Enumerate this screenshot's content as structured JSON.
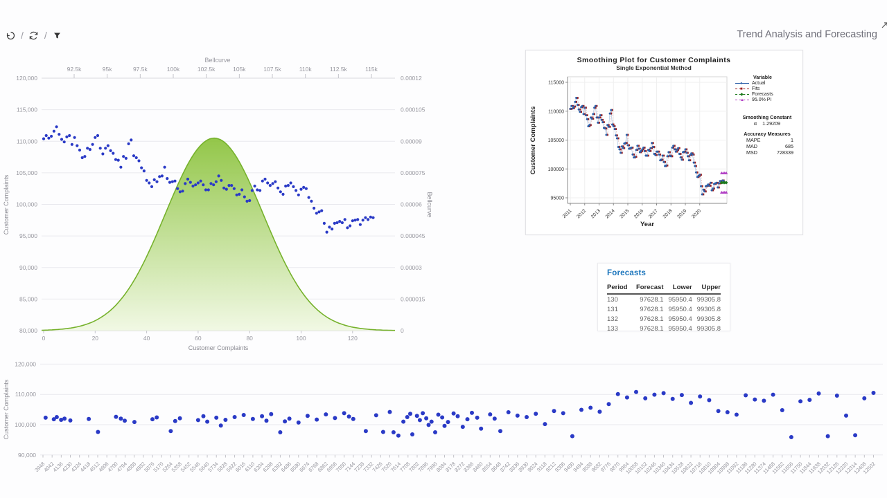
{
  "header": {
    "title": "Trend Analysis and Forecasting",
    "toolbar": {
      "undo_icon": "undo-history",
      "refresh_icon": "refresh",
      "filter_icon": "filter",
      "separator": "/"
    }
  },
  "colors": {
    "scatter_blue": "#2a3ac6",
    "bell_green_stroke": "#76b22c",
    "bell_green_top": "#8ac23a",
    "bell_green_bottom": "#f0f8e2",
    "grid": "#e9e9ee",
    "axis_text": "#97979f",
    "mt_actual": "#2b5fa8",
    "mt_fits": "#9c2020",
    "mt_forecast": "#1d7a1d",
    "mt_pi": "#b13fc4",
    "table_title_blue": "#1b75bc"
  },
  "chart_data": [
    {
      "id": "complaints_bellcurve",
      "type": "scatter+area",
      "top_axis_title": "Bellcurve",
      "xlabel": "Customer Complaints",
      "ylabel_left": "Customer Complaints",
      "ylabel_right": "Bellcurve",
      "x_ticks_bottom": [
        "0",
        "20",
        "40",
        "60",
        "80",
        "100",
        "120"
      ],
      "x_ticks_top": [
        "92.5k",
        "95k",
        "97.5k",
        "100k",
        "102.5k",
        "105k",
        "107.5k",
        "110k",
        "112.5k",
        "115k"
      ],
      "y_ticks_left": [
        "120,000",
        "115,000",
        "110,000",
        "105,000",
        "100,000",
        "95,000",
        "90,000",
        "85,000",
        "80,000"
      ],
      "y_ticks_right": [
        "0.00012",
        "0.000105",
        "0.00009",
        "0.000075",
        "0.00006",
        "0.000045",
        "0.00003",
        "0.000015",
        "0"
      ],
      "ylim_left": [
        80000,
        120000
      ],
      "ylim_right": [
        0,
        0.00012
      ],
      "xlim": [
        0,
        136
      ],
      "bellcurve": {
        "mean": 103100,
        "sd": 3700,
        "peak": 9.15e-05
      },
      "series_scatter": [
        110400,
        110900,
        110500,
        110800,
        111600,
        112300,
        111100,
        110300,
        109900,
        110700,
        110900,
        109500,
        110600,
        109300,
        108600,
        107400,
        107600,
        108900,
        108700,
        109500,
        110600,
        110900,
        108900,
        108000,
        108900,
        109300,
        108500,
        108100,
        107100,
        107000,
        105900,
        107600,
        107300,
        109600,
        110200,
        107700,
        107400,
        106900,
        105800,
        105300,
        103800,
        103400,
        102800,
        103900,
        103600,
        104400,
        104500,
        105900,
        104100,
        103500,
        103600,
        103700,
        102500,
        102000,
        102100,
        103300,
        104000,
        103500,
        102900,
        103100,
        103400,
        103700,
        103100,
        102300,
        102300,
        103300,
        103100,
        103600,
        104500,
        103800,
        102600,
        102400,
        103000,
        103000,
        102500,
        101500,
        101600,
        102300,
        101200,
        100500,
        100600,
        102200,
        102900,
        102300,
        102200,
        103700,
        104000,
        103400,
        103000,
        103300,
        103600,
        102600,
        102000,
        101600,
        102900,
        103000,
        103400,
        102800,
        102200,
        101500,
        102400,
        102700,
        102500,
        101100,
        100500,
        99400,
        98600,
        98800,
        99000,
        97000,
        95600,
        96400,
        96100,
        97000,
        97100,
        97300,
        97100,
        97600,
        96300,
        96600,
        97400,
        97500,
        97600,
        96800,
        97500,
        97900,
        97600,
        98000,
        97900
      ]
    },
    {
      "id": "smoothing_plot",
      "type": "line",
      "title": "Smoothing Plot for Customer Complaints",
      "subtitle": "Single Exponential Method",
      "xlabel": "Year",
      "ylabel": "Customer Complaints",
      "x_tick_labels": [
        "2011",
        "2012",
        "2013",
        "2014",
        "2015",
        "2016",
        "2017",
        "2018",
        "2019",
        "2020"
      ],
      "y_ticks": [
        "115000",
        "110000",
        "105000",
        "100000",
        "95000"
      ],
      "legend_title": "Variable",
      "legend": [
        {
          "label": "Actual",
          "color": "#2b5fa8",
          "marker": "circle",
          "dash": false
        },
        {
          "label": "Fits",
          "color": "#9c2020",
          "marker": "square",
          "dash": true
        },
        {
          "label": "Forecasts",
          "color": "#1d7a1d",
          "marker": "diamond",
          "dash": true
        },
        {
          "label": "95.0% PI",
          "color": "#b13fc4",
          "marker": "triangle",
          "dash": true
        }
      ],
      "smoothing_constant_label": "Smoothing Constant",
      "alpha_label": "α",
      "alpha_value": "1.29209",
      "accuracy_title": "Accuracy Measures",
      "accuracy": [
        [
          "MAPE",
          "1"
        ],
        [
          "MAD",
          "685"
        ],
        [
          "MSD",
          "728339"
        ]
      ],
      "forecast_value": 97628.1,
      "pi_upper": 99305.8,
      "pi_lower": 95950.4
    },
    {
      "id": "forecasts_table",
      "type": "table",
      "title": "Forecasts",
      "columns": [
        "Period",
        "Forecast",
        "Lower",
        "Upper"
      ],
      "rows": [
        [
          "130",
          "97628.1",
          "95950.4",
          "99305.8"
        ],
        [
          "131",
          "97628.1",
          "95950.4",
          "99305.8"
        ],
        [
          "132",
          "97628.1",
          "95950.4",
          "99305.8"
        ],
        [
          "133",
          "97628.1",
          "95950.4",
          "99305.8"
        ]
      ]
    },
    {
      "id": "bottom_scatter",
      "type": "scatter",
      "ylabel": "Customer Complaints",
      "y_ticks": [
        "120,000",
        "110,000",
        "100,000",
        "90,000"
      ],
      "ylim": [
        90000,
        120000
      ],
      "x_tick_labels": [
        "3948",
        "4042",
        "4136",
        "4230",
        "4324",
        "4418",
        "4512",
        "4606",
        "4700",
        "4794",
        "4888",
        "4982",
        "5076",
        "5170",
        "5264",
        "5358",
        "5452",
        "5546",
        "5640",
        "5734",
        "5828",
        "5922",
        "6016",
        "6110",
        "6204",
        "6298",
        "6392",
        "6486",
        "6580",
        "6674",
        "6768",
        "6862",
        "6956",
        "7050",
        "7144",
        "7238",
        "7332",
        "7426",
        "7520",
        "7614",
        "7708",
        "7802",
        "7896",
        "7990",
        "8084",
        "8178",
        "8272",
        "8366",
        "8460",
        "8554",
        "8648",
        "8742",
        "8836",
        "8930",
        "9024",
        "9118",
        "9212",
        "9306",
        "9400",
        "9494",
        "9588",
        "9682",
        "9776",
        "9870",
        "9964",
        "10058",
        "10152",
        "10246",
        "10340",
        "10434",
        "10528",
        "10622",
        "10716",
        "10810",
        "10904",
        "10998",
        "11092",
        "11186",
        "11280",
        "11374",
        "11468",
        "11562",
        "11656",
        "11750",
        "11844",
        "11938",
        "12032",
        "12126",
        "12220",
        "12314",
        "12408",
        "12502"
      ],
      "points": [
        [
          3975,
          102300
        ],
        [
          4060,
          101800
        ],
        [
          4090,
          102500
        ],
        [
          4135,
          101600
        ],
        [
          4170,
          102000
        ],
        [
          4230,
          101400
        ],
        [
          4420,
          101900
        ],
        [
          4515,
          97600
        ],
        [
          4700,
          102600
        ],
        [
          4750,
          102000
        ],
        [
          4790,
          101300
        ],
        [
          4890,
          100900
        ],
        [
          5076,
          101800
        ],
        [
          5120,
          102400
        ],
        [
          5264,
          97900
        ],
        [
          5310,
          101200
        ],
        [
          5358,
          102100
        ],
        [
          5546,
          101500
        ],
        [
          5600,
          102800
        ],
        [
          5640,
          101000
        ],
        [
          5734,
          102300
        ],
        [
          5780,
          99700
        ],
        [
          5828,
          101600
        ],
        [
          5922,
          102500
        ],
        [
          6016,
          103200
        ],
        [
          6110,
          101900
        ],
        [
          6204,
          102800
        ],
        [
          6250,
          101300
        ],
        [
          6298,
          103500
        ],
        [
          6392,
          97500
        ],
        [
          6440,
          101100
        ],
        [
          6486,
          102000
        ],
        [
          6580,
          100700
        ],
        [
          6674,
          102900
        ],
        [
          6768,
          101700
        ],
        [
          6862,
          103400
        ],
        [
          6956,
          102200
        ],
        [
          7050,
          103800
        ],
        [
          7100,
          102700
        ],
        [
          7144,
          101900
        ],
        [
          7273,
          97900
        ],
        [
          7380,
          103100
        ],
        [
          7452,
          97600
        ],
        [
          7520,
          104200
        ],
        [
          7559,
          97500
        ],
        [
          7609,
          96400
        ],
        [
          7660,
          101000
        ],
        [
          7700,
          102500
        ],
        [
          7731,
          103600
        ],
        [
          7752,
          96800
        ],
        [
          7800,
          102900
        ],
        [
          7830,
          101500
        ],
        [
          7860,
          103800
        ],
        [
          7896,
          102100
        ],
        [
          7920,
          99900
        ],
        [
          7950,
          101000
        ],
        [
          7988,
          97500
        ],
        [
          8020,
          103300
        ],
        [
          8060,
          102400
        ],
        [
          8084,
          99600
        ],
        [
          8120,
          100900
        ],
        [
          8178,
          103700
        ],
        [
          8220,
          102800
        ],
        [
          8272,
          99300
        ],
        [
          8320,
          101800
        ],
        [
          8366,
          103900
        ],
        [
          8420,
          102300
        ],
        [
          8460,
          98700
        ],
        [
          8554,
          103400
        ],
        [
          8600,
          102000
        ],
        [
          8659,
          97900
        ],
        [
          8742,
          104100
        ],
        [
          8836,
          103000
        ],
        [
          8930,
          102500
        ],
        [
          9024,
          103600
        ],
        [
          9118,
          100200
        ],
        [
          9212,
          104500
        ],
        [
          9306,
          103800
        ],
        [
          9400,
          96200
        ],
        [
          9494,
          104900
        ],
        [
          9588,
          105600
        ],
        [
          9682,
          104300
        ],
        [
          9776,
          106800
        ],
        [
          9870,
          110100
        ],
        [
          9964,
          109000
        ],
        [
          10058,
          110800
        ],
        [
          10152,
          108700
        ],
        [
          10246,
          109900
        ],
        [
          10340,
          110400
        ],
        [
          10434,
          108500
        ],
        [
          10528,
          109800
        ],
        [
          10622,
          107200
        ],
        [
          10716,
          109300
        ],
        [
          10810,
          108100
        ],
        [
          10904,
          104500
        ],
        [
          10998,
          104100
        ],
        [
          11092,
          103300
        ],
        [
          11186,
          109700
        ],
        [
          11280,
          108300
        ],
        [
          11374,
          107900
        ],
        [
          11468,
          109900
        ],
        [
          11562,
          104800
        ],
        [
          11656,
          95900
        ],
        [
          11750,
          107700
        ],
        [
          11844,
          108200
        ],
        [
          11938,
          110300
        ],
        [
          12032,
          96200
        ],
        [
          12126,
          109600
        ],
        [
          12220,
          103000
        ],
        [
          12314,
          96500
        ],
        [
          12408,
          108700
        ],
        [
          12502,
          110500
        ]
      ]
    }
  ]
}
